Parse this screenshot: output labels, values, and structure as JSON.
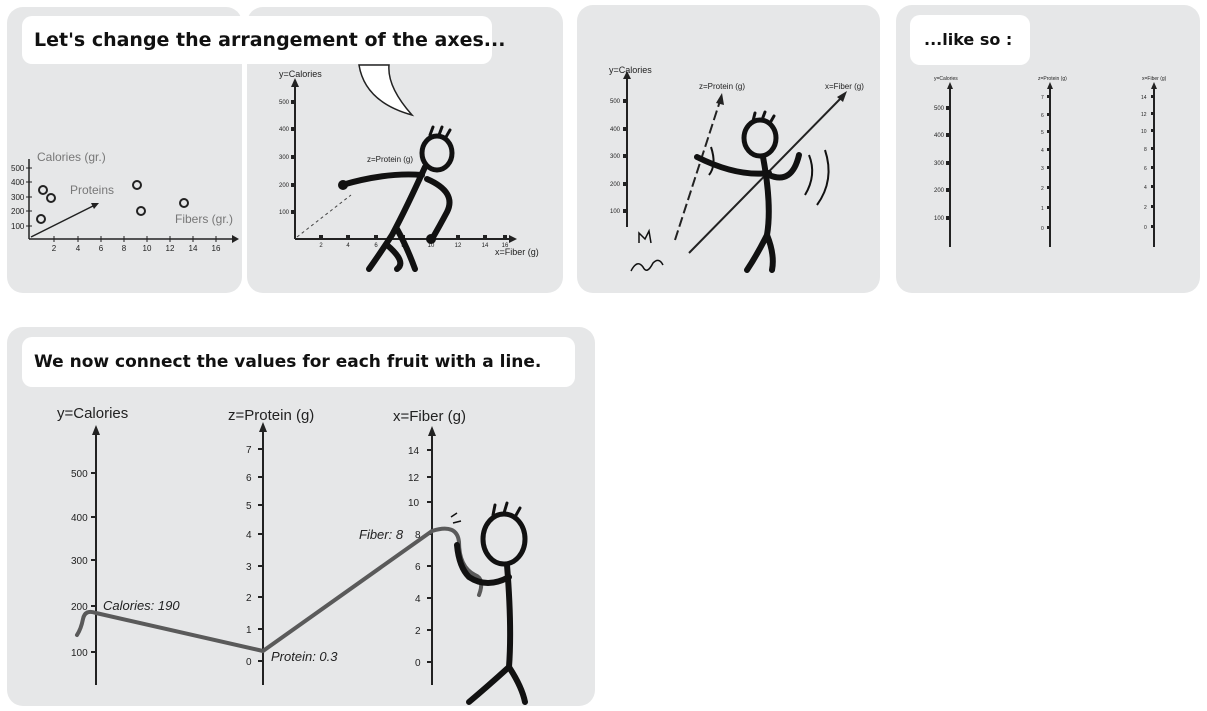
{
  "panel1": {
    "caption": "Let's change the arrangement of the axes...",
    "y_ticks": [
      "500",
      "400",
      "300",
      "200",
      "100"
    ],
    "x_ticks": [
      "2",
      "4",
      "6",
      "8",
      "10",
      "12",
      "14",
      "16"
    ],
    "label_calories": "Calories (gr.)",
    "label_proteins": "Proteins",
    "label_fibers": "Fibers (gr.)"
  },
  "panel2": {
    "y_label": "y=Calories",
    "z_label": "z=Protein (g)",
    "x_label": "x=Fiber (g)",
    "y_ticks": [
      "500",
      "400",
      "300",
      "200",
      "100"
    ],
    "x_ticks": [
      "2",
      "4",
      "6",
      "8",
      "10",
      "12",
      "14",
      "16"
    ]
  },
  "panel3": {
    "y_label": "y=Calories",
    "z_label": "z=Protein (g)",
    "x_label": "x=Fiber (g)",
    "y_ticks": [
      "500",
      "400",
      "300",
      "200",
      "100"
    ]
  },
  "panel4": {
    "caption": "...like so :",
    "y_label": "y=Calories",
    "z_label": "z=Protein (g)",
    "x_label": "x=Fiber (g)",
    "y_ticks": [
      "500",
      "400",
      "300",
      "200",
      "100"
    ],
    "z_ticks": [
      "7",
      "6",
      "5",
      "4",
      "3",
      "2",
      "1",
      "0"
    ],
    "x_ticks": [
      "14",
      "12",
      "10",
      "8",
      "6",
      "4",
      "2",
      "0"
    ]
  },
  "panel5": {
    "caption": "We now connect the values for each fruit with a line.",
    "y_label": "y=Calories",
    "z_label": "z=Protein (g)",
    "x_label": "x=Fiber (g)",
    "y_ticks": [
      "500",
      "400",
      "300",
      "200",
      "100"
    ],
    "z_ticks": [
      "7",
      "6",
      "5",
      "4",
      "3",
      "2",
      "1",
      "0"
    ],
    "x_ticks": [
      "14",
      "12",
      "10",
      "8",
      "6",
      "4",
      "2",
      "0"
    ],
    "annot_calories": "Calories: 190",
    "annot_protein": "Protein: 0.3",
    "annot_fiber": "Fiber: 8"
  },
  "colors": {
    "panel_bg": "#e6e7e8",
    "bubble_bg": "#ffffff",
    "ink": "#111111",
    "data_line": "#5a5a5a"
  }
}
